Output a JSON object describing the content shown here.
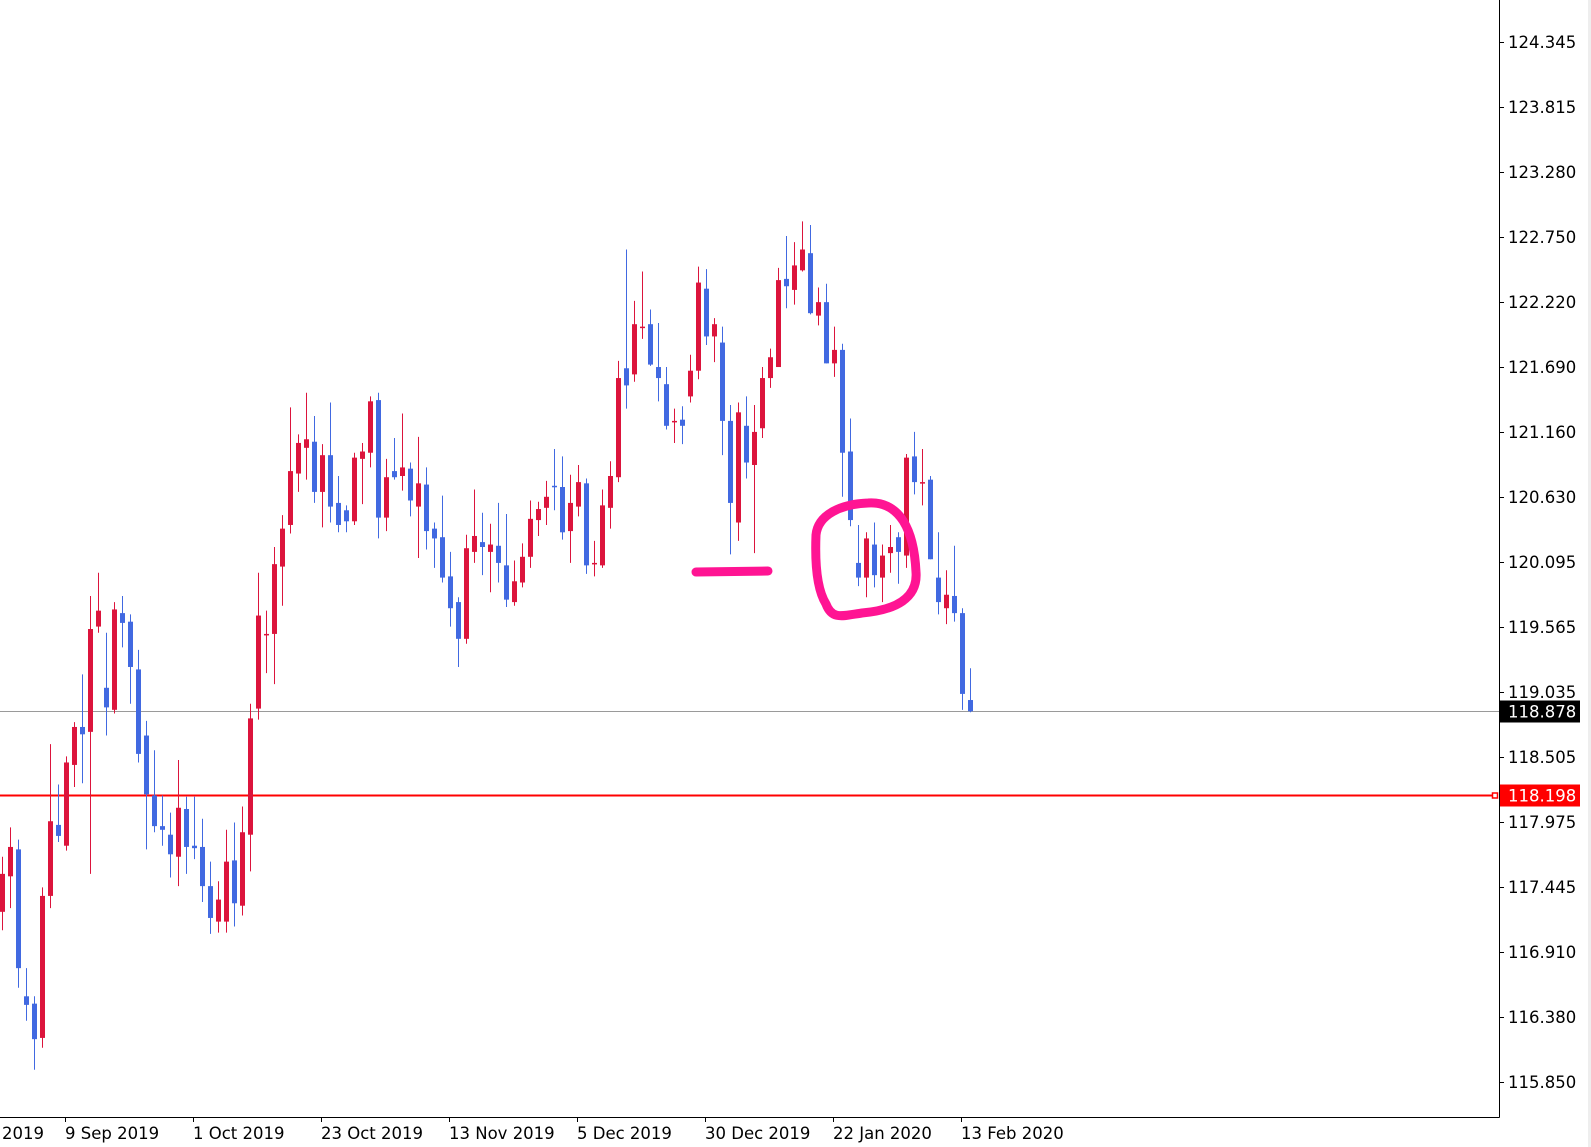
{
  "chart_data": {
    "type": "candlestick",
    "title": "",
    "xlabel": "",
    "ylabel": "",
    "ylim": [
      115.7,
      124.6
    ],
    "grid": false,
    "legend": "none",
    "candle_format": [
      "open",
      "high",
      "low",
      "close"
    ],
    "candles": [
      [
        117.24,
        117.69,
        117.09,
        117.55
      ],
      [
        117.53,
        117.93,
        117.27,
        117.77
      ],
      [
        117.75,
        117.83,
        116.62,
        116.78
      ],
      [
        116.55,
        116.78,
        116.35,
        116.48
      ],
      [
        116.49,
        116.55,
        115.95,
        116.2
      ],
      [
        116.21,
        117.44,
        116.13,
        117.37
      ],
      [
        117.37,
        118.61,
        117.27,
        117.98
      ],
      [
        117.95,
        118.28,
        117.81,
        117.86
      ],
      [
        117.78,
        118.51,
        117.74,
        118.46
      ],
      [
        118.44,
        118.79,
        118.26,
        118.75
      ],
      [
        118.75,
        119.18,
        118.29,
        118.69
      ],
      [
        118.71,
        119.82,
        117.55,
        119.55
      ],
      [
        119.57,
        120.01,
        119.52,
        119.7
      ],
      [
        119.07,
        119.52,
        118.68,
        118.91
      ],
      [
        118.89,
        119.77,
        118.86,
        119.71
      ],
      [
        119.68,
        119.82,
        119.4,
        119.6
      ],
      [
        119.61,
        119.67,
        118.94,
        119.24
      ],
      [
        119.22,
        119.38,
        118.46,
        118.53
      ],
      [
        118.68,
        118.8,
        117.75,
        118.2
      ],
      [
        118.19,
        118.56,
        117.89,
        117.94
      ],
      [
        117.94,
        118.19,
        117.78,
        117.91
      ],
      [
        117.87,
        118.05,
        117.52,
        117.71
      ],
      [
        117.69,
        118.48,
        117.45,
        118.09
      ],
      [
        118.08,
        118.18,
        117.55,
        117.77
      ],
      [
        117.78,
        118.18,
        117.67,
        117.76
      ],
      [
        117.77,
        118.0,
        117.32,
        117.45
      ],
      [
        117.45,
        117.65,
        117.06,
        117.19
      ],
      [
        117.16,
        117.49,
        117.07,
        117.34
      ],
      [
        117.16,
        117.91,
        117.07,
        117.65
      ],
      [
        117.66,
        117.97,
        117.12,
        117.31
      ],
      [
        117.29,
        118.1,
        117.21,
        117.89
      ],
      [
        117.87,
        118.94,
        117.57,
        118.82
      ],
      [
        118.9,
        120.01,
        118.81,
        119.66
      ],
      [
        119.51,
        119.7,
        119.19,
        119.51
      ],
      [
        119.51,
        120.22,
        119.1,
        120.08
      ],
      [
        120.06,
        120.48,
        119.74,
        120.37
      ],
      [
        120.4,
        121.36,
        120.33,
        120.84
      ],
      [
        120.82,
        121.14,
        120.67,
        121.07
      ],
      [
        121.03,
        121.48,
        120.77,
        121.1
      ],
      [
        121.08,
        121.29,
        120.58,
        120.67
      ],
      [
        120.67,
        121.06,
        120.38,
        120.97
      ],
      [
        120.97,
        121.4,
        120.42,
        120.55
      ],
      [
        120.58,
        120.8,
        120.34,
        120.4
      ],
      [
        120.52,
        120.56,
        120.34,
        120.43
      ],
      [
        120.43,
        120.99,
        120.4,
        120.95
      ],
      [
        120.94,
        121.07,
        120.57,
        121.0
      ],
      [
        120.99,
        121.45,
        120.87,
        121.41
      ],
      [
        121.42,
        121.48,
        120.29,
        120.46
      ],
      [
        120.46,
        120.94,
        120.35,
        120.79
      ],
      [
        120.84,
        121.11,
        120.77,
        120.79
      ],
      [
        120.8,
        121.31,
        120.68,
        120.87
      ],
      [
        120.86,
        120.91,
        120.47,
        120.6
      ],
      [
        120.55,
        121.12,
        120.13,
        120.74
      ],
      [
        120.73,
        120.87,
        120.2,
        120.35
      ],
      [
        120.37,
        120.42,
        120.05,
        120.29
      ],
      [
        120.3,
        120.64,
        119.93,
        119.97
      ],
      [
        119.98,
        120.18,
        119.57,
        119.72
      ],
      [
        119.77,
        119.81,
        119.24,
        119.47
      ],
      [
        119.47,
        120.32,
        119.43,
        120.21
      ],
      [
        120.18,
        120.69,
        120.09,
        120.31
      ],
      [
        120.26,
        120.5,
        119.99,
        120.22
      ],
      [
        120.18,
        120.41,
        119.85,
        120.24
      ],
      [
        120.23,
        120.58,
        119.93,
        120.09
      ],
      [
        120.07,
        120.49,
        119.73,
        119.79
      ],
      [
        119.77,
        120.11,
        119.74,
        119.94
      ],
      [
        119.93,
        120.25,
        119.89,
        120.14
      ],
      [
        120.14,
        120.6,
        120.05,
        120.45
      ],
      [
        120.44,
        120.59,
        120.31,
        120.53
      ],
      [
        120.54,
        120.76,
        120.4,
        120.63
      ],
      [
        120.72,
        121.02,
        120.52,
        120.71
      ],
      [
        120.71,
        120.96,
        120.28,
        120.34
      ],
      [
        120.35,
        120.81,
        120.09,
        120.58
      ],
      [
        120.55,
        120.89,
        120.47,
        120.75
      ],
      [
        120.74,
        120.78,
        120.0,
        120.07
      ],
      [
        120.09,
        120.27,
        119.98,
        120.09
      ],
      [
        120.07,
        120.69,
        120.05,
        120.56
      ],
      [
        120.54,
        120.92,
        120.37,
        120.8
      ],
      [
        120.79,
        121.74,
        120.75,
        121.6
      ],
      [
        121.68,
        122.65,
        121.35,
        121.54
      ],
      [
        121.63,
        122.23,
        121.57,
        122.04
      ],
      [
        122.02,
        122.47,
        121.92,
        122.02
      ],
      [
        122.04,
        122.16,
        121.7,
        121.71
      ],
      [
        121.69,
        122.05,
        121.41,
        121.6
      ],
      [
        121.55,
        121.69,
        121.18,
        121.21
      ],
      [
        121.25,
        121.35,
        121.07,
        121.25
      ],
      [
        121.26,
        121.37,
        121.06,
        121.21
      ],
      [
        121.45,
        121.79,
        121.4,
        121.66
      ],
      [
        121.66,
        122.51,
        121.59,
        122.38
      ],
      [
        122.33,
        122.49,
        121.87,
        121.94
      ],
      [
        121.94,
        122.09,
        121.73,
        122.04
      ],
      [
        121.89,
        122.02,
        120.97,
        121.25
      ],
      [
        121.25,
        121.38,
        120.16,
        120.58
      ],
      [
        120.42,
        121.4,
        120.27,
        121.32
      ],
      [
        121.21,
        121.45,
        120.78,
        120.91
      ],
      [
        120.89,
        121.38,
        120.17,
        121.16
      ],
      [
        121.19,
        121.69,
        121.11,
        121.6
      ],
      [
        121.6,
        121.84,
        121.52,
        121.77
      ],
      [
        121.69,
        122.5,
        121.69,
        122.4
      ],
      [
        122.41,
        122.76,
        122.17,
        122.35
      ],
      [
        122.32,
        122.71,
        122.2,
        122.52
      ],
      [
        122.48,
        122.88,
        122.47,
        122.65
      ],
      [
        122.62,
        122.85,
        122.12,
        122.13
      ],
      [
        122.11,
        122.34,
        122.03,
        122.22
      ],
      [
        122.22,
        122.37,
        121.72,
        121.72
      ],
      [
        121.72,
        122.02,
        121.61,
        121.83
      ],
      [
        121.83,
        121.88,
        120.63,
        120.99
      ],
      [
        121.0,
        121.27,
        120.39,
        120.44
      ],
      [
        120.09,
        120.4,
        119.9,
        119.97
      ],
      [
        119.97,
        120.34,
        119.81,
        120.29
      ],
      [
        120.24,
        120.42,
        119.89,
        119.99
      ],
      [
        119.97,
        120.24,
        119.77,
        120.15
      ],
      [
        120.17,
        120.4,
        120.01,
        120.22
      ],
      [
        120.3,
        120.34,
        119.92,
        120.18
      ],
      [
        120.15,
        120.98,
        120.05,
        120.95
      ],
      [
        120.96,
        121.16,
        120.65,
        120.75
      ],
      [
        120.75,
        121.02,
        120.56,
        120.75
      ],
      [
        120.77,
        120.8,
        120.12,
        120.12
      ],
      [
        119.97,
        120.34,
        119.67,
        119.77
      ],
      [
        119.72,
        120.03,
        119.59,
        119.83
      ],
      [
        119.82,
        120.23,
        119.61,
        119.68
      ],
      [
        119.68,
        119.72,
        118.89,
        119.02
      ],
      [
        118.97,
        119.23,
        118.87,
        118.878
      ]
    ],
    "y_ticks": [
      "124.345",
      "123.815",
      "123.280",
      "122.750",
      "122.220",
      "121.690",
      "121.160",
      "120.630",
      "120.095",
      "119.565",
      "119.035",
      "118.505",
      "117.975",
      "117.445",
      "116.910",
      "116.380",
      "115.850"
    ],
    "x_tick_labels": [
      "2019",
      "9 Sep 2019",
      "1 Oct 2019",
      "23 Oct 2019",
      "13 Nov 2019",
      "5 Dec 2019",
      "30 Dec 2019",
      "22 Jan 2020",
      "13 Feb 2020"
    ],
    "current_price": {
      "value": 118.878,
      "label": "118.878"
    },
    "horizontal_line": {
      "value": 118.198,
      "label": "118.198"
    },
    "colors": {
      "bull": "#dc143c",
      "bear": "#4169e1",
      "current_price_line": "#9a9a9a",
      "horizontal_line": "#ff0000",
      "annotation": "#ff1493",
      "axis": "#000000"
    },
    "annotations": [
      "horizontal-marker-stroke",
      "circle-marker-stroke"
    ]
  }
}
